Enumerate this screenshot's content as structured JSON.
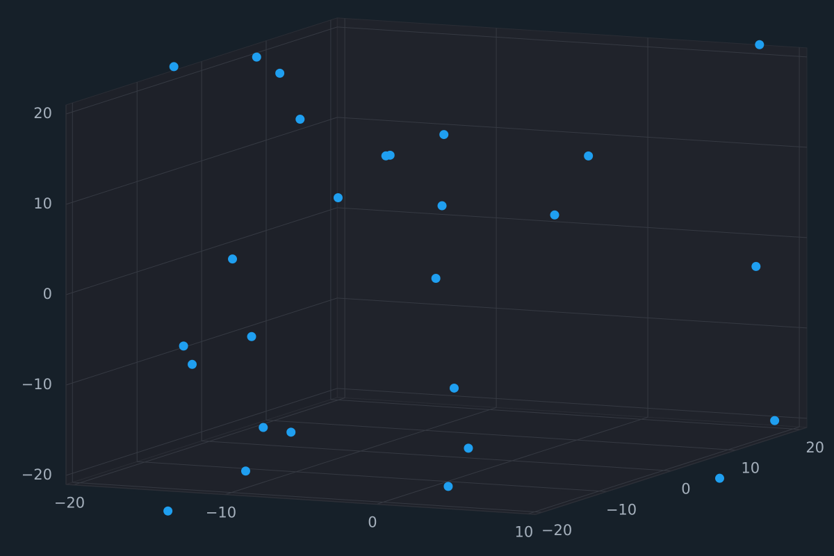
{
  "chart_data": {
    "type": "scatter3d",
    "color": "#1f9ff0",
    "grid": true,
    "x": [
      -20.2,
      -19.0,
      -19.6,
      -14.0,
      -12.6,
      -3.8,
      -10.9,
      2.9,
      7.8,
      -5.1,
      -2.5,
      2.8,
      -14.2,
      -9.3,
      9.7,
      -15.3,
      -17.2,
      -12.6,
      -1.7,
      -14.3,
      -14.6,
      3.5,
      -11.2,
      4.3,
      -14.2,
      7.3,
      8.8
    ],
    "y": [
      -5,
      5,
      10,
      0,
      10,
      -10,
      15,
      5,
      20,
      -15,
      -5,
      0,
      -10,
      10,
      15,
      -15,
      0,
      -20,
      -5,
      -5,
      0,
      -15,
      -15,
      -20,
      -20,
      15,
      20
    ],
    "z": [
      21.6,
      20.5,
      17.5,
      15.3,
      9.1,
      14.7,
      10.5,
      11.9,
      21.3,
      11.0,
      8.1,
      6.5,
      2.1,
      -4.1,
      -1.9,
      -6.5,
      -9.1,
      -7.1,
      -12.0,
      -17.7,
      -19.4,
      -15.8,
      -19.9,
      -18.8,
      -23.5,
      -25.6,
      -20.2
    ],
    "xlim": [
      -20.5,
      10.5
    ],
    "ylim": [
      -21,
      21
    ],
    "zlim": [
      -21,
      21
    ],
    "xticks": [
      {
        "value": -20,
        "label": "−20"
      },
      {
        "value": -10,
        "label": "−10"
      },
      0,
      10
    ],
    "yticks": [
      {
        "value": -20,
        "label": "−20"
      },
      {
        "value": -10,
        "label": "−10"
      },
      0,
      10,
      20
    ],
    "zticks": [
      {
        "value": -20,
        "label": "−20"
      },
      {
        "value": -10,
        "label": "−10"
      },
      0,
      10,
      20
    ]
  }
}
